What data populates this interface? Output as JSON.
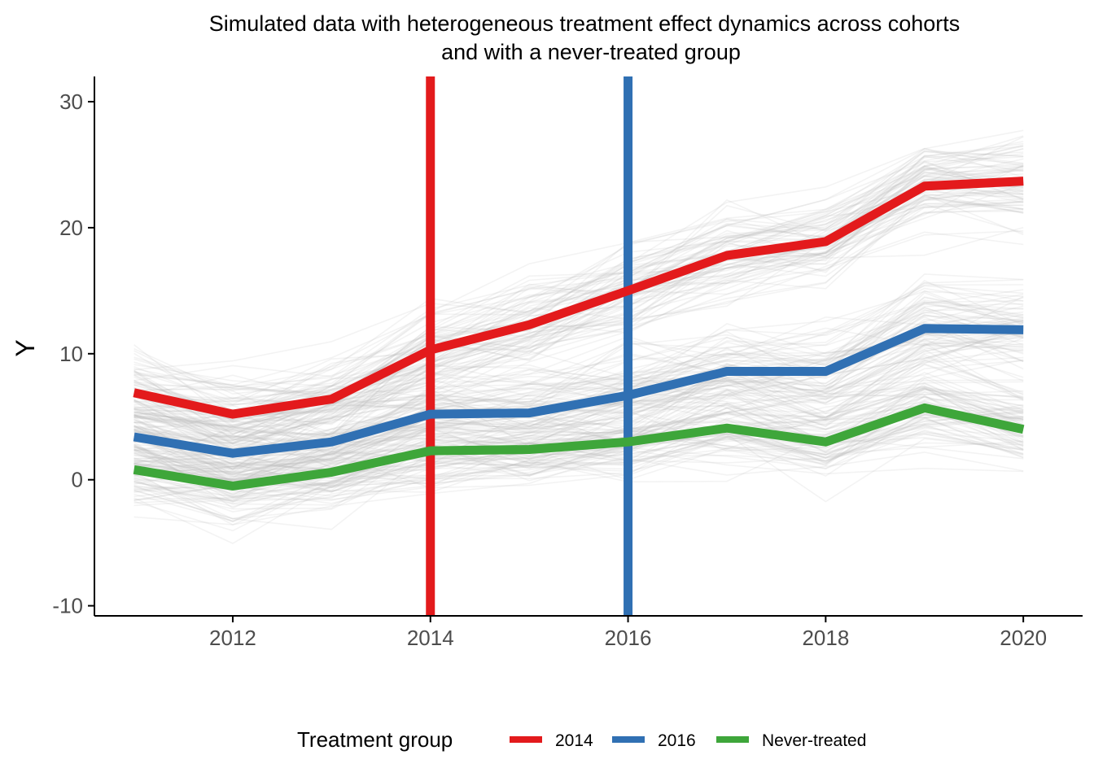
{
  "chart_data": {
    "type": "line",
    "title": [
      "Simulated data with heterogeneous treatment effect dynamics across cohorts",
      "and with a never-treated group"
    ],
    "xlabel": "",
    "ylabel": "Y",
    "xlim": [
      2010.6,
      2020.6
    ],
    "ylim": [
      -10.8,
      32
    ],
    "x_ticks": [
      2012,
      2014,
      2016,
      2018,
      2020
    ],
    "y_ticks": [
      -10,
      0,
      10,
      20,
      30
    ],
    "grid": false,
    "legend_position": "bottom",
    "x": [
      2011,
      2012,
      2013,
      2014,
      2015,
      2016,
      2017,
      2018,
      2019,
      2020
    ],
    "series": [
      {
        "name": "2014",
        "color": "#e31a1c",
        "values": [
          6.9,
          5.2,
          6.4,
          10.3,
          12.3,
          15.0,
          17.8,
          18.9,
          23.3,
          23.7
        ]
      },
      {
        "name": "2016",
        "color": "#3070b3",
        "values": [
          3.4,
          2.1,
          3.0,
          5.2,
          5.3,
          6.7,
          8.6,
          8.6,
          12.0,
          11.9
        ]
      },
      {
        "name": "Never-treated",
        "color": "#3ea63a",
        "values": [
          0.8,
          -0.5,
          0.6,
          2.3,
          2.4,
          3.0,
          4.1,
          3.0,
          5.7,
          4.0
        ]
      }
    ],
    "treatment_lines": [
      {
        "x": 2014,
        "color": "#e31a1c"
      },
      {
        "x": 2016,
        "color": "#3070b3"
      }
    ],
    "background_units": {
      "color": "#bdbdbd",
      "description_count": 240,
      "cohorts": [
        {
          "base": [
            6.9,
            5.2,
            6.4,
            10.3,
            12.3,
            15.0,
            17.8,
            18.9,
            23.3,
            23.7
          ],
          "spread": 2.6
        },
        {
          "base": [
            3.4,
            2.1,
            3.0,
            5.2,
            5.3,
            6.7,
            8.6,
            8.6,
            12.0,
            11.9
          ],
          "spread": 2.8
        },
        {
          "base": [
            0.8,
            -0.5,
            0.6,
            2.3,
            2.4,
            3.0,
            4.1,
            3.0,
            5.7,
            4.0
          ],
          "spread": 2.6
        }
      ]
    }
  },
  "legend": {
    "title": "Treatment group",
    "items": [
      {
        "label": "2014",
        "color": "#e31a1c"
      },
      {
        "label": "2016",
        "color": "#3070b3"
      },
      {
        "label": "Never-treated",
        "color": "#3ea63a"
      }
    ]
  }
}
